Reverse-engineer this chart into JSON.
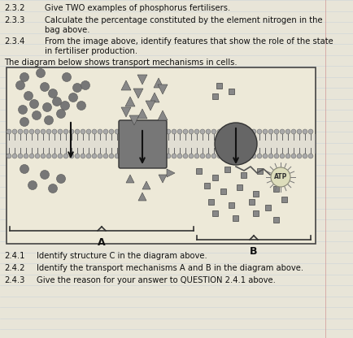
{
  "page_bg": "#e8e5d8",
  "text_color": "#111111",
  "line_color": "#b0c4d8",
  "margin_color": "#cc8888",
  "fig_width": 4.35,
  "fig_height": 4.16,
  "dpi": 100,
  "q232_num": "2.3.2",
  "q232_text": "Give TWO examples of phosphorus fertilisers.",
  "q233_num": "2.3.3",
  "q233_line1": "Calculate the percentage constituted by the element nitrogen in the",
  "q233_line2": "bag above.",
  "q234_num": "2.3.4",
  "q234_line1": "From the image above, identify features that show the role of the state",
  "q234_line2": "in fertiliser production.",
  "intro": "The diagram below shows transport mechanisms in cells.",
  "q241_num": "2.4.1",
  "q241_text": "Identify structure C in the diagram above.",
  "q242_num": "2.4.2",
  "q242_text": "Identify the transport mechanisms A and B in the diagram above.",
  "q243_num": "2.4.3",
  "q243_text": "Give the reason for your answer to QUESTION 2.4.1 above.",
  "mem_color": "#999999",
  "protein_color": "#666666",
  "molecule_color": "#777777",
  "atp_color": "#888888"
}
